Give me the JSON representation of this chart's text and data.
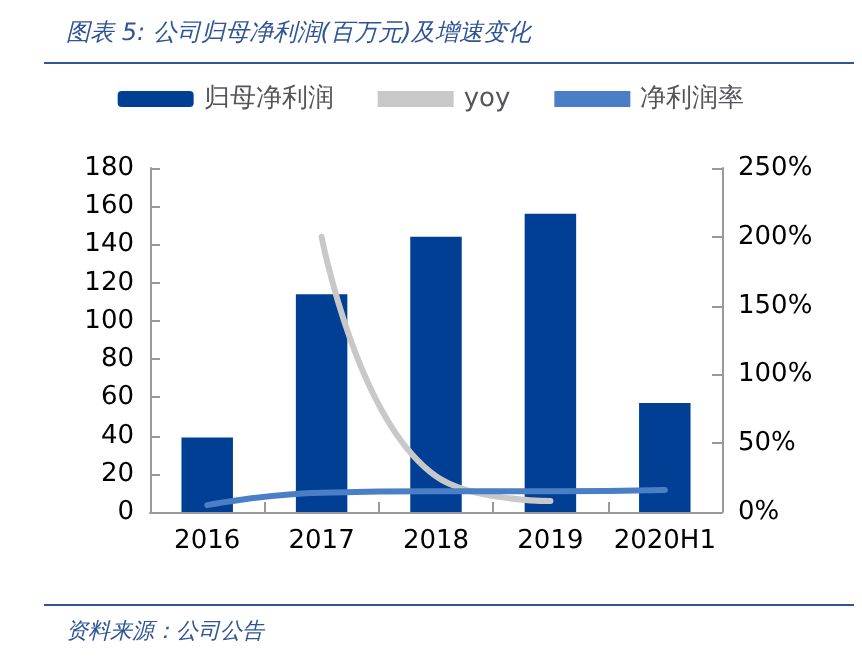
{
  "chart_data": {
    "type": "bar",
    "title": "图表 5:  公司归母净利润(百万元)及增速变化",
    "categories": [
      "2016",
      "2017",
      "2018",
      "2019",
      "2020H1"
    ],
    "series": [
      {
        "name": "归母净利润",
        "color": "#003f94",
        "values": [
          39,
          114,
          144,
          156,
          57
        ]
      },
      {
        "name": "yoy",
        "type": "line",
        "axis": "y2",
        "color": "#c8c8c8",
        "values": [
          null,
          200,
          26,
          8,
          null
        ]
      },
      {
        "name": "净利润率",
        "type": "line",
        "axis": "y2",
        "color": "#4a7fc6",
        "values": [
          5,
          14,
          15,
          15,
          16
        ]
      }
    ],
    "ylim": [
      0,
      180
    ],
    "yticks": [
      0,
      20,
      40,
      60,
      80,
      100,
      120,
      140,
      160,
      180
    ],
    "y2lim": [
      0,
      250
    ],
    "y2ticks": [
      {
        "value": 0,
        "label": "0%"
      },
      {
        "value": 50,
        "label": "50%"
      },
      {
        "value": 100,
        "label": "100%"
      },
      {
        "value": 150,
        "label": "150%"
      },
      {
        "value": 200,
        "label": "200%"
      },
      {
        "value": 250,
        "label": "250%"
      }
    ],
    "legend": "top",
    "grid": false,
    "marker": "none",
    "line_style": "solid",
    "annotations": [
      "资料来源：公司公告"
    ]
  }
}
